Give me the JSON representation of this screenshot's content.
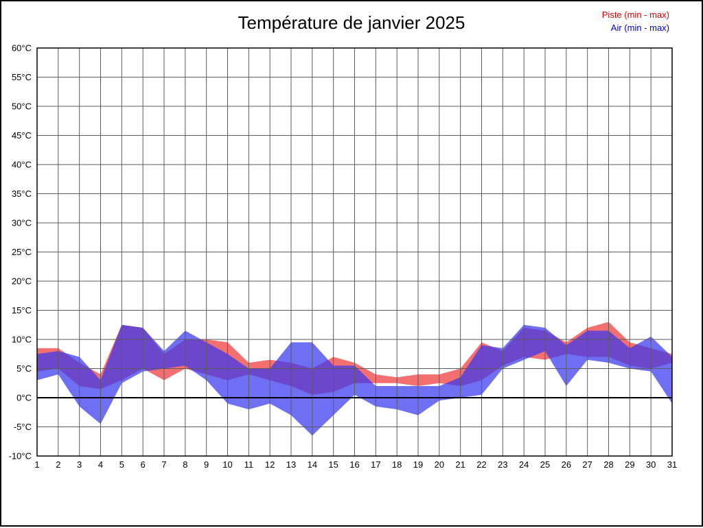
{
  "title": "Température de janvier 2025",
  "legend": {
    "piste": "Piste (min - max)",
    "air": "Air (min - max)"
  },
  "colors": {
    "piste_text": "#dd0000",
    "air_text": "#0000dd",
    "piste_band": "#f03838",
    "air_band": "#3838f0",
    "band_opacity": 0.72,
    "grid": "#5a5a5a",
    "zero_line": "#000000",
    "plot_border": "#000000",
    "tick_text": "#000000"
  },
  "chart_data": {
    "type": "area",
    "title": "Température de janvier 2025",
    "xlabel": "",
    "ylabel": "",
    "y_unit": "°C",
    "ylim": [
      -10,
      60
    ],
    "ytick_step": 5,
    "grid": true,
    "legend_position": "top-right",
    "x": [
      1,
      2,
      3,
      4,
      5,
      6,
      7,
      8,
      9,
      10,
      11,
      12,
      13,
      14,
      15,
      16,
      17,
      18,
      19,
      20,
      21,
      22,
      23,
      24,
      25,
      26,
      27,
      28,
      29,
      30,
      31
    ],
    "series": [
      {
        "id": "piste",
        "name": "Piste (min - max)",
        "color": "#f03838",
        "min": [
          4.5,
          5,
          2,
          1.5,
          3,
          5,
          3,
          5,
          4,
          3,
          4,
          3,
          2,
          0.5,
          1,
          2.5,
          2.5,
          2.5,
          2,
          2.5,
          2,
          3,
          5.5,
          7,
          6.5,
          7.5,
          7,
          7,
          5.5,
          5,
          6
        ],
        "max": [
          8.5,
          8.5,
          6,
          4,
          12.5,
          12,
          7.5,
          10,
          10,
          9.5,
          6,
          6.5,
          6,
          5,
          7,
          6,
          4,
          3.5,
          4,
          4,
          5,
          9.5,
          8,
          12,
          11.5,
          9.5,
          12,
          13,
          9.5,
          8.5,
          7.5
        ]
      },
      {
        "id": "air",
        "name": "Air (min - max)",
        "color": "#3838f0",
        "min": [
          3,
          4,
          -1.5,
          -4.5,
          2.5,
          4.5,
          5,
          5.5,
          3,
          -1,
          -2,
          -1,
          -3,
          -6.5,
          -3,
          0.5,
          -1.5,
          -2,
          -3,
          -0.5,
          0,
          0.5,
          5,
          6.5,
          8,
          2,
          6.5,
          6,
          5,
          4.5,
          -1
        ],
        "max": [
          7.5,
          8,
          7,
          3,
          12.5,
          12,
          8,
          11.5,
          9.5,
          7.5,
          5,
          5,
          9.5,
          9.5,
          5.5,
          5.5,
          2,
          2,
          2,
          2,
          3.5,
          9,
          8.5,
          12.5,
          12,
          9,
          11.5,
          11.5,
          8.5,
          10.5,
          7
        ]
      }
    ]
  }
}
